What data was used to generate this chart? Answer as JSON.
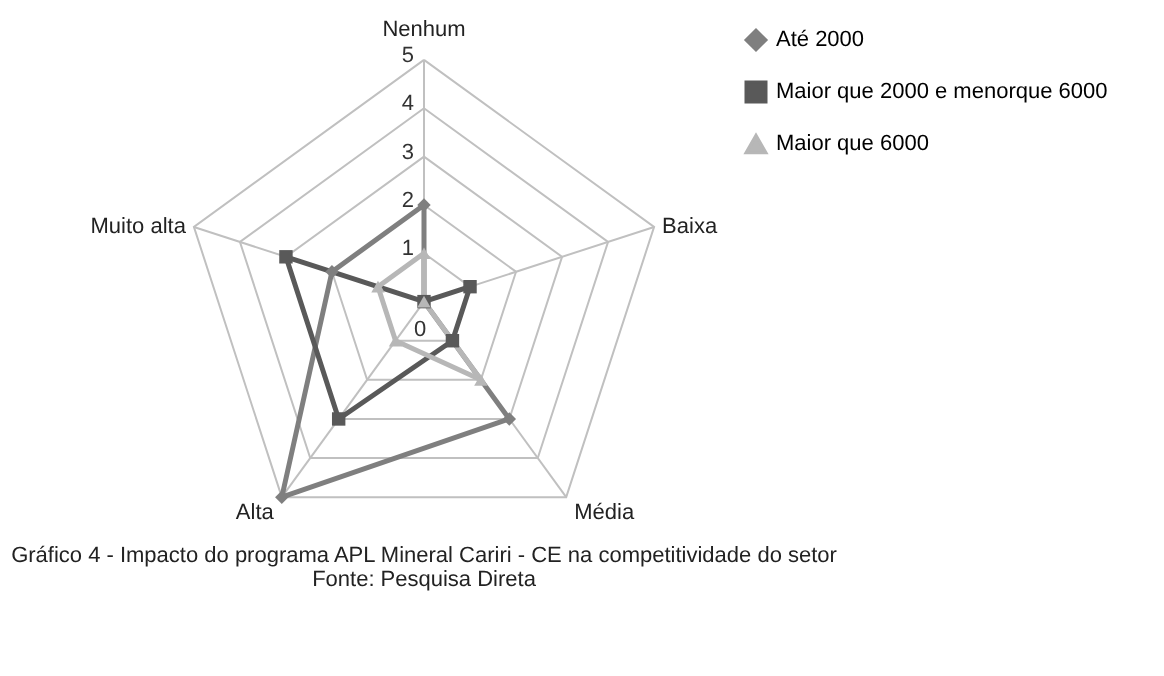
{
  "chart_data": {
    "type": "radar",
    "title": "Gráfico 4 - Impacto do programa APL Mineral Cariri - CE na competitividade do setor",
    "annotations": [
      "Fonte: Pesquisa Direta"
    ],
    "categories": [
      "Nenhum",
      "Baixa",
      "Média",
      "Alta",
      "Muito alta"
    ],
    "ylim": [
      0,
      5
    ],
    "yticks": [
      0,
      1,
      2,
      3,
      4,
      5
    ],
    "grid": true,
    "legend": "right",
    "series": [
      {
        "name": "Até 2000",
        "color": "#7f7f7f",
        "marker": "diamond",
        "values": [
          2,
          0,
          3,
          5,
          2
        ]
      },
      {
        "name": "Maior que 2000 e menorque 6000",
        "color": "#595959",
        "marker": "square",
        "values": [
          0,
          1,
          1,
          3,
          3
        ]
      },
      {
        "name": "Maior que 6000",
        "color": "#b7b7b7",
        "marker": "triangle",
        "values": [
          1,
          0,
          2,
          1,
          1
        ]
      }
    ]
  }
}
